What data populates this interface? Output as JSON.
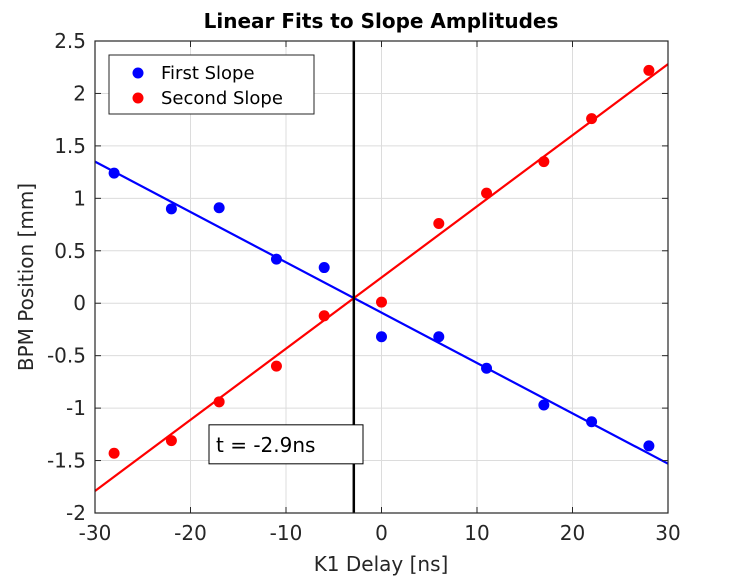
{
  "chart_data": {
    "type": "scatter",
    "title": "Linear Fits to Slope Amplitudes",
    "xlabel": "K1 Delay [ns]",
    "ylabel": "BPM Position [mm]",
    "xlim": [
      -30,
      30
    ],
    "ylim": [
      -2,
      2.5
    ],
    "xticks": [
      -30,
      -20,
      -10,
      0,
      10,
      20,
      30
    ],
    "yticks": [
      -2,
      -1.5,
      -1,
      -0.5,
      0,
      0.5,
      1,
      1.5,
      2,
      2.5
    ],
    "xtick_labels": [
      "-30",
      "-20",
      "-10",
      "0",
      "10",
      "20",
      "30"
    ],
    "ytick_labels": [
      "-2",
      "-1.5",
      "-1",
      "-0.5",
      "0",
      "0.5",
      "1",
      "1.5",
      "2",
      "2.5"
    ],
    "grid": true,
    "legend_position": "top-left",
    "series": [
      {
        "name": "First Slope",
        "color": "#0000ff",
        "x": [
          -28,
          -22,
          -17,
          -11,
          -6,
          0,
          6,
          11,
          17,
          22,
          28
        ],
        "y": [
          1.24,
          0.9,
          0.91,
          0.42,
          0.34,
          -0.32,
          -0.32,
          -0.62,
          -0.97,
          -1.13,
          -1.36
        ],
        "fit": {
          "x": [
            -30,
            30
          ],
          "y": [
            1.35,
            -1.53
          ]
        }
      },
      {
        "name": "Second Slope",
        "color": "#ff0000",
        "x": [
          -28,
          -22,
          -17,
          -11,
          -6,
          0,
          6,
          11,
          17,
          22,
          28
        ],
        "y": [
          -1.43,
          -1.31,
          -0.94,
          -0.6,
          -0.12,
          0.01,
          0.76,
          1.05,
          1.35,
          1.76,
          2.22
        ],
        "fit": {
          "x": [
            -30,
            30
          ],
          "y": [
            -1.79,
            2.28
          ]
        }
      }
    ],
    "vertical_line": {
      "x": -2.9,
      "color": "#000000"
    },
    "annotation": {
      "text": "t = -2.9ns",
      "x": -10,
      "y": -1.35
    }
  }
}
